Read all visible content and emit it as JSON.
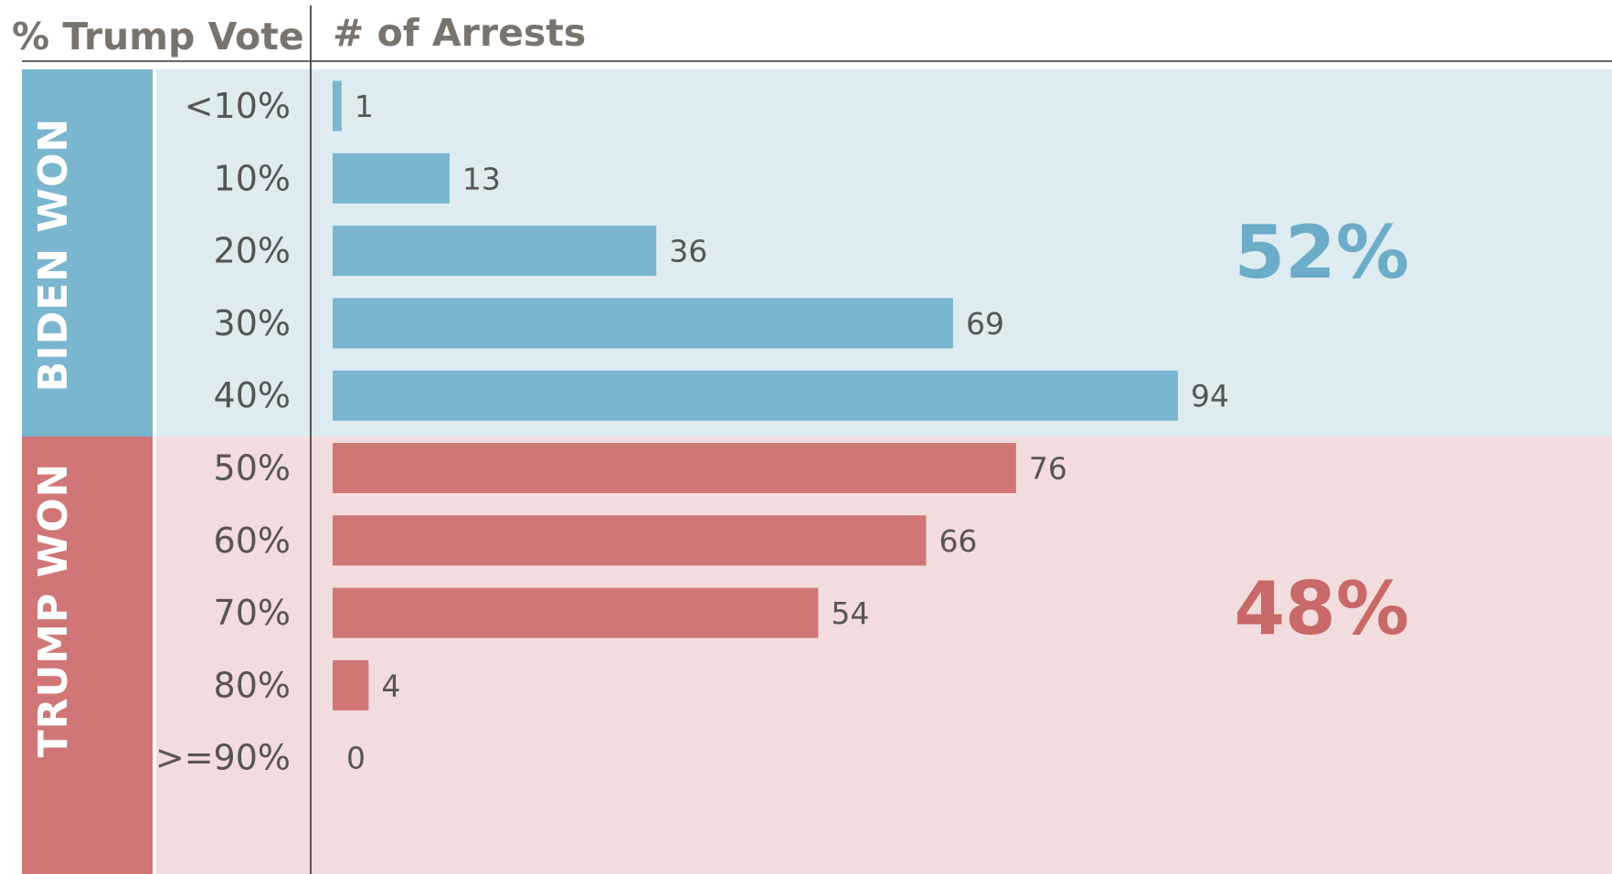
{
  "chart_data": {
    "type": "bar",
    "orientation": "horizontal",
    "row_header": "% Trump Vote",
    "value_header": "# of Arrests",
    "categories": [
      "<10%",
      "10%",
      "20%",
      "30%",
      "40%",
      "50%",
      "60%",
      "70%",
      "80%",
      ">=90%"
    ],
    "values": [
      1,
      13,
      36,
      69,
      94,
      76,
      66,
      54,
      4,
      0
    ],
    "xlim": [
      0,
      100
    ],
    "groups": [
      {
        "label": "BIDEN WON",
        "share": "52%",
        "categories": [
          "<10%",
          "10%",
          "20%",
          "30%",
          "40%"
        ],
        "color": "#7ab6cf",
        "background": "#deecf1"
      },
      {
        "label": "TRUMP WON",
        "share": "48%",
        "categories": [
          "50%",
          "60%",
          "70%",
          "80%",
          ">=90%"
        ],
        "color": "#d17676",
        "background": "#f3dcdd"
      }
    ],
    "share_colors": {
      "biden": "#6cacc9",
      "trump": "#c96868"
    },
    "header_color": "#7a736c",
    "text_color": "#555555"
  }
}
